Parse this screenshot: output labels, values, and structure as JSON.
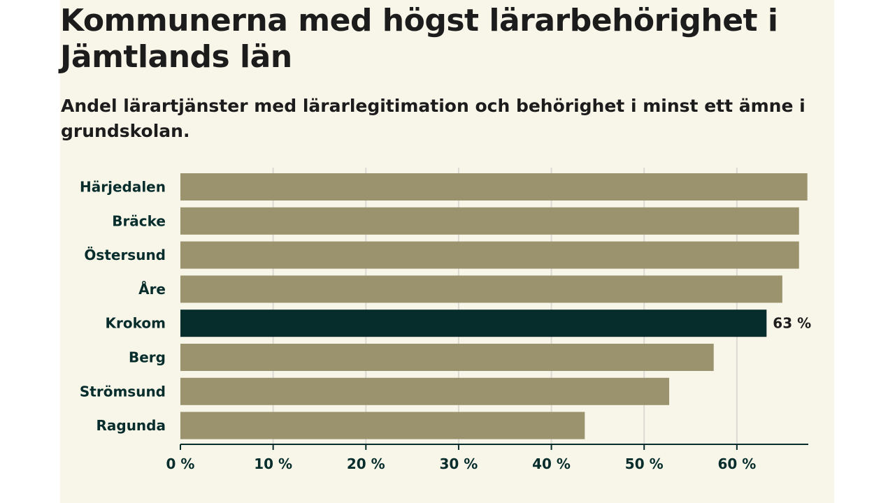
{
  "header": {
    "title": "Kommunerna med högst lärarbehörighet i Jämtlands län",
    "subtitle": "Andel lärartjänster med lärarlegitimation och behörighet i minst ett ämne i grundskolan."
  },
  "chart_data": {
    "type": "bar",
    "orientation": "horizontal",
    "title": "Kommunerna med högst lärarbehörighet i Jämtlands län",
    "subtitle": "Andel lärartjänster med lärarlegitimation och behörighet i minst ett ämne i grundskolan.",
    "categories": [
      "Härjedalen",
      "Bräcke",
      "Östersund",
      "Åre",
      "Krokom",
      "Berg",
      "Strömsund",
      "Ragunda"
    ],
    "values": [
      67.6,
      66.7,
      66.7,
      64.9,
      63.2,
      57.5,
      52.7,
      43.6
    ],
    "highlight": "Krokom",
    "highlight_label": "63 %",
    "xlim": [
      0,
      67.7
    ],
    "xticks": [
      0,
      10,
      20,
      30,
      40,
      50,
      60
    ],
    "xtick_labels": [
      "0 %",
      "10 %",
      "20 %",
      "30 %",
      "40 %",
      "50 %",
      "60 %"
    ],
    "grid": true,
    "xlabel": "",
    "ylabel": "",
    "colors": {
      "bar": "#9a936d",
      "highlight": "#062d2c",
      "axis": "#062d2c",
      "label": "#062d2c",
      "grid": "#dcdad2"
    }
  }
}
